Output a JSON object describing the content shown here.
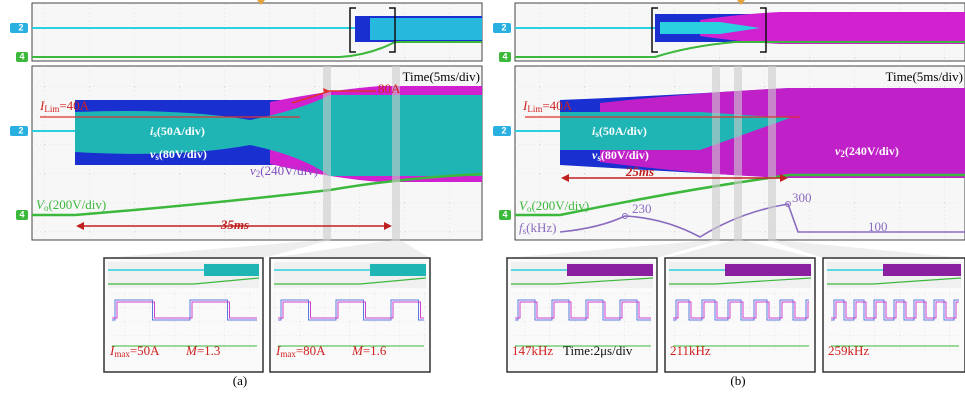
{
  "panel_a": {
    "caption": "(a)",
    "time_scale": "Time(5ms/div)",
    "channels": {
      "current": "2",
      "output": "4"
    },
    "limit": {
      "symbol": "I",
      "sub": "Lim",
      "value": "=40A"
    },
    "peak": "80A",
    "is": {
      "symbol": "i",
      "sub": "s",
      "scale": "(50A/div)"
    },
    "vs": {
      "symbol": "v",
      "sub": "s",
      "scale": "(80V/div)"
    },
    "v2": {
      "symbol": "v",
      "sub": "2",
      "scale": "(240V/div)"
    },
    "vo": {
      "symbol": "V",
      "sub": "o",
      "scale": "(200V/div)"
    },
    "duration": "35ms",
    "insets": [
      {
        "symbol": "I",
        "sub": "max",
        "value": "=50A",
        "m_symbol": "M",
        "m_value": "=1.3"
      },
      {
        "symbol": "I",
        "sub": "max",
        "value": "=80A",
        "m_symbol": "M",
        "m_value": "=1.6"
      }
    ]
  },
  "panel_b": {
    "caption": "(b)",
    "time_scale": "Time(5ms/div)",
    "channels": {
      "current": "2",
      "output": "4"
    },
    "limit": {
      "symbol": "I",
      "sub": "Lim",
      "value": "=40A"
    },
    "is": {
      "symbol": "i",
      "sub": "s",
      "scale": "(50A/div)"
    },
    "vs": {
      "symbol": "v",
      "sub": "s",
      "scale": "(80V/div)"
    },
    "v2": {
      "symbol": "v",
      "sub": "2",
      "scale": "(240V/div)"
    },
    "vo": {
      "symbol": "V",
      "sub": "o",
      "scale": "(200V/div)"
    },
    "fs": {
      "symbol": "f",
      "sub": "s",
      "unit": "(kHz)"
    },
    "fs_marks": [
      "230",
      "300",
      "100"
    ],
    "duration": "25ms",
    "insets": [
      {
        "freq": "147kHz",
        "time_scale": "Time:2μs/div"
      },
      {
        "freq": "211kHz"
      },
      {
        "freq": "259kHz"
      }
    ]
  }
}
